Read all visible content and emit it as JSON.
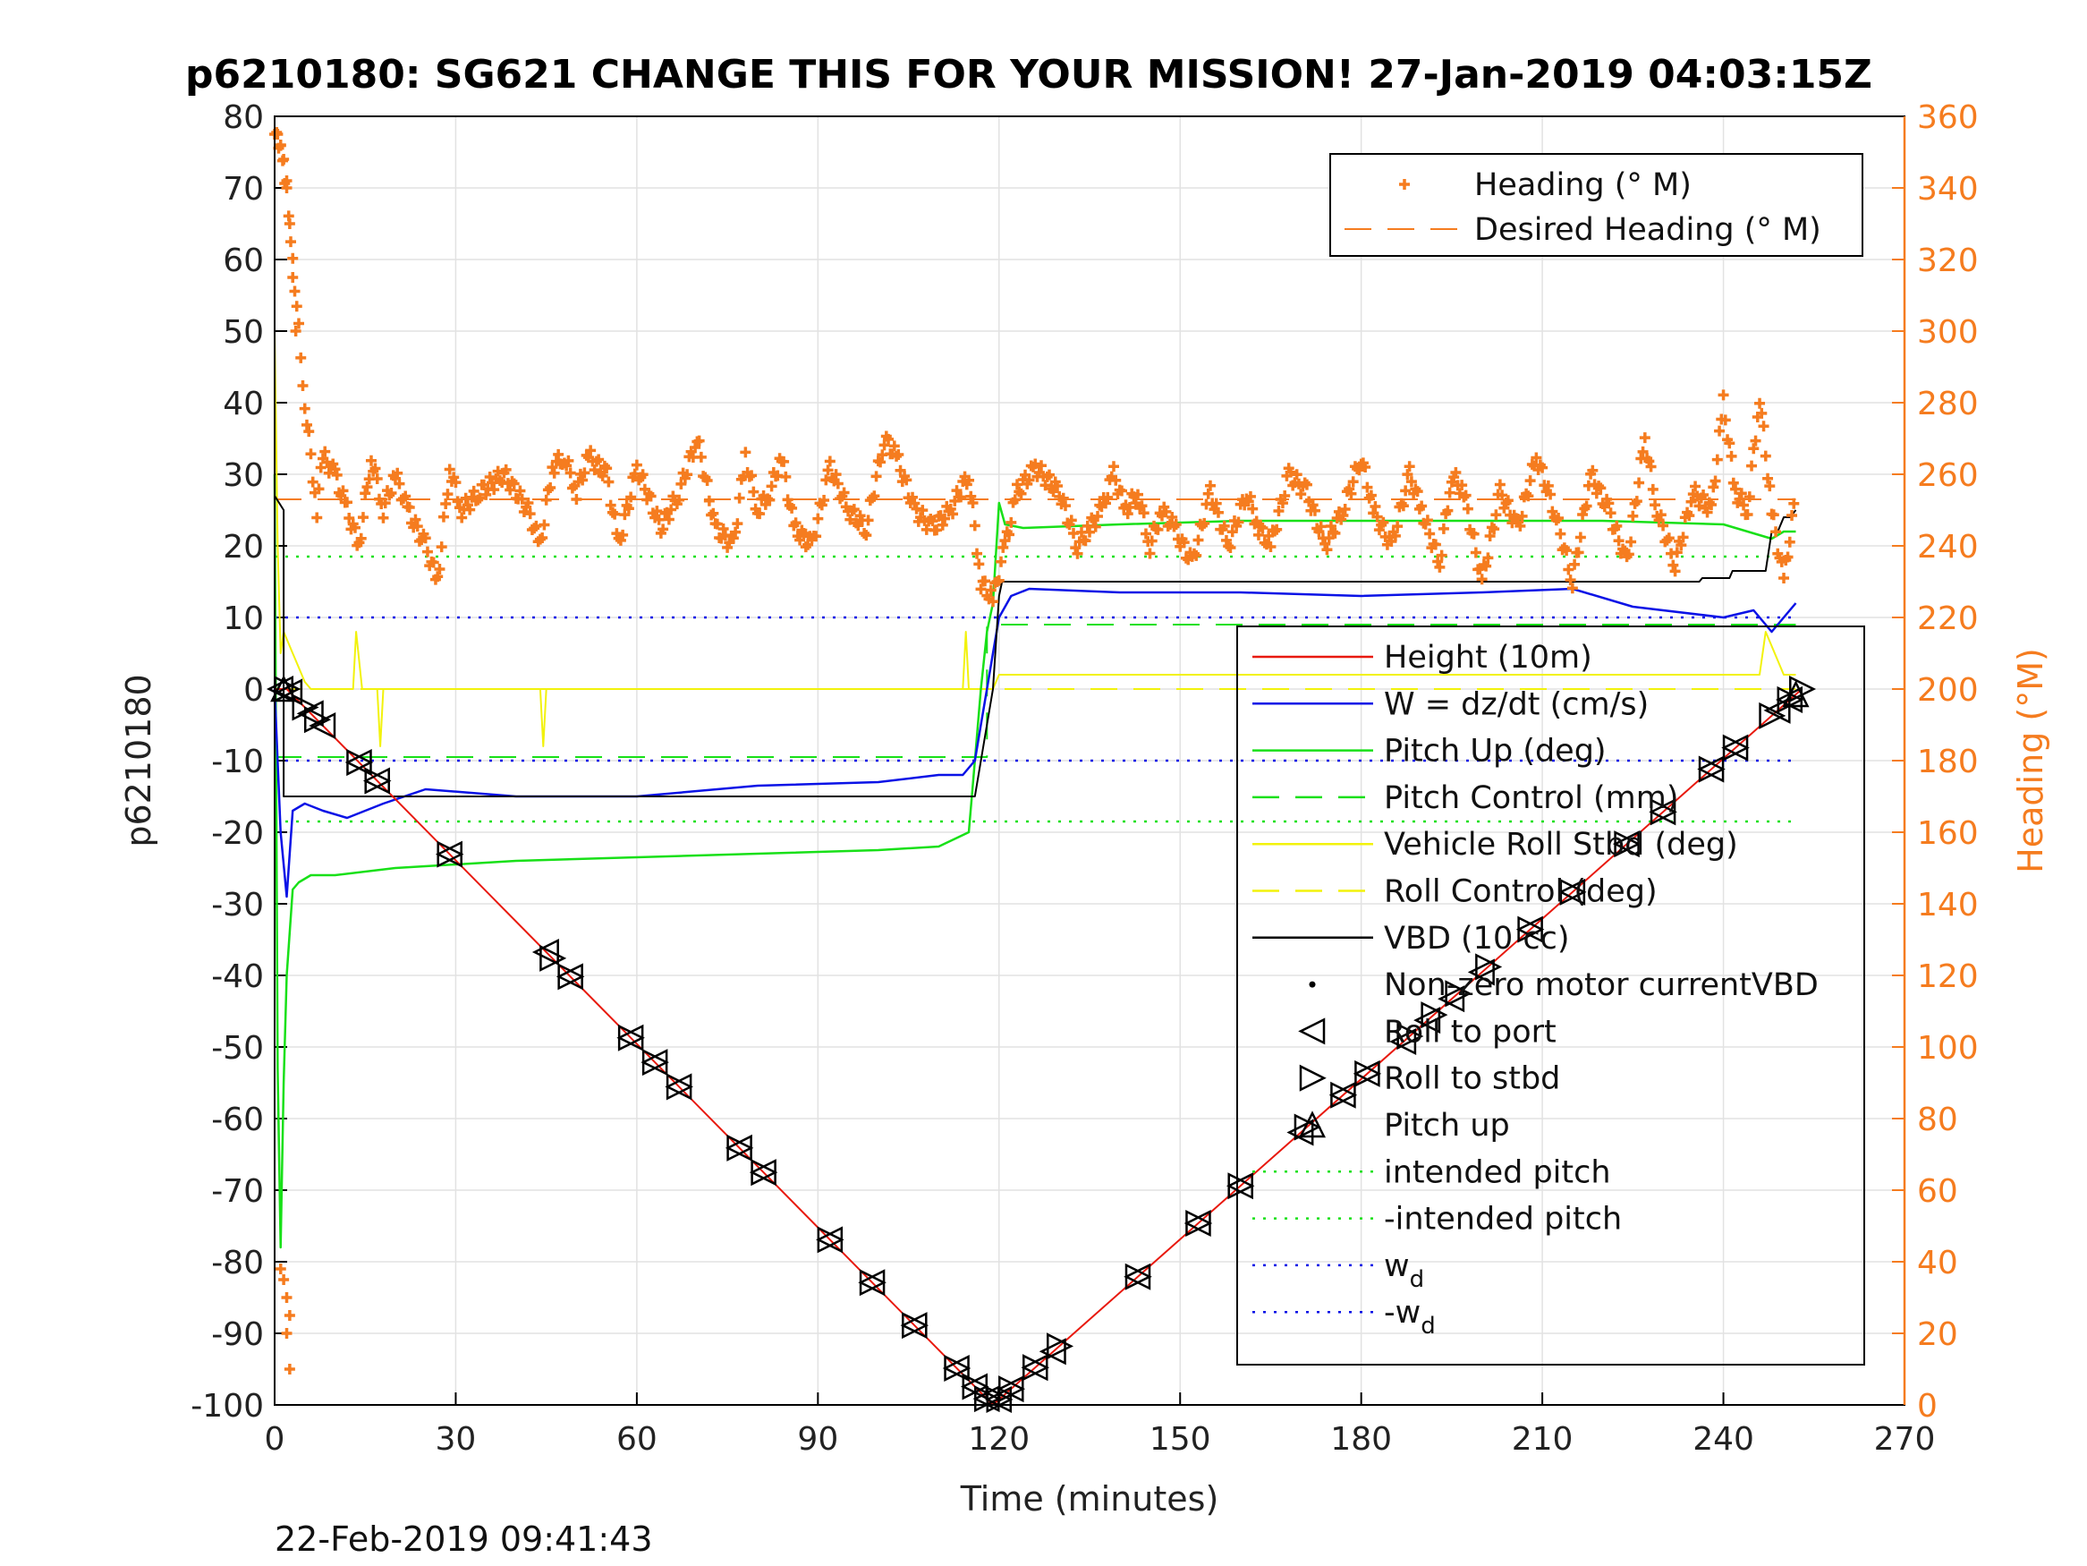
{
  "chart_data": {
    "type": "line",
    "title": "p6210180: SG621 CHANGE THIS FOR YOUR MISSION! 27-Jan-2019 04:03:15Z",
    "xlabel": "Time (minutes)",
    "ylabel": "p6210180",
    "ylabel_right": "Heading (°M)",
    "timestamp": "22-Feb-2019 09:41:43",
    "xlim": [
      0,
      270
    ],
    "ylim": [
      -100,
      80
    ],
    "ylim_right": [
      0,
      360
    ],
    "xticks": [
      "0",
      "30",
      "60",
      "90",
      "120",
      "150",
      "180",
      "210",
      "240",
      "270"
    ],
    "yticks": [
      "80",
      "70",
      "60",
      "50",
      "40",
      "30",
      "20",
      "10",
      "0",
      "-10",
      "-20",
      "-30",
      "-40",
      "-50",
      "-60",
      "-70",
      "-80",
      "-90",
      "-100"
    ],
    "yticks_right": [
      "360",
      "340",
      "320",
      "300",
      "280",
      "260",
      "240",
      "220",
      "200",
      "180",
      "160",
      "140",
      "120",
      "100",
      "80",
      "60",
      "40",
      "20",
      "0"
    ],
    "grid": true,
    "colors": {
      "height": "#e8190e",
      "w": "#0a12e6",
      "pitch": "#18e018",
      "roll": "#f2f20c",
      "vbd": "#000000",
      "heading": "#f57c1f",
      "right_axis": "#f57c1f"
    },
    "legend_heading": {
      "placement": "top-right",
      "entries": [
        "Heading (° M)",
        "Desired Heading (° M)"
      ]
    },
    "legend_main": {
      "placement": "right",
      "entries": [
        {
          "label": "Height (10m)",
          "sub": ""
        },
        {
          "label": "W = dz/dt (cm/s)",
          "sub": ""
        },
        {
          "label": "Pitch Up (deg)",
          "sub": ""
        },
        {
          "label": "Pitch Control (mm)",
          "sub": ""
        },
        {
          "label": "Vehicle Roll Stbd (deg)",
          "sub": ""
        },
        {
          "label": "Roll Control (deg)",
          "sub": ""
        },
        {
          "label": "VBD (10 cc)",
          "sub": ""
        },
        {
          "label": "Non-zero motor currentVBD",
          "sub": ""
        },
        {
          "label": "Roll to port",
          "sub": ""
        },
        {
          "label": "Roll to stbd",
          "sub": ""
        },
        {
          "label": "Pitch up",
          "sub": ""
        },
        {
          "label": "intended pitch",
          "sub": ""
        },
        {
          "label": "-intended pitch",
          "sub": ""
        },
        {
          "label": "w",
          "sub": "d"
        },
        {
          "label": "-w",
          "sub": "d"
        }
      ]
    },
    "series": [
      {
        "name": "Height (10m)",
        "x": [
          0,
          2,
          119,
          253
        ],
        "y": [
          0,
          0,
          -100,
          0
        ]
      },
      {
        "name": "W = dz/dt (cm/s)",
        "x": [
          0,
          1,
          2,
          3,
          5,
          8,
          12,
          18,
          25,
          40,
          60,
          80,
          100,
          110,
          114,
          116,
          117,
          118,
          119,
          120,
          122,
          125,
          140,
          160,
          180,
          200,
          215,
          225,
          240,
          245,
          248,
          250,
          252
        ],
        "y": [
          0,
          -20,
          -29,
          -17,
          -16,
          -17,
          -18,
          -16,
          -14,
          -15,
          -15,
          -13.5,
          -13,
          -12,
          -12,
          -10,
          -5,
          0,
          5,
          10,
          13,
          14,
          13.5,
          13.5,
          13,
          13.5,
          14,
          11.5,
          10,
          11,
          8,
          10,
          12
        ]
      },
      {
        "name": "Pitch Up (deg)",
        "x": [
          0,
          0.5,
          1,
          1.5,
          2,
          3,
          4,
          6,
          10,
          20,
          40,
          60,
          80,
          100,
          110,
          115,
          116,
          117,
          118,
          119,
          120,
          121,
          124,
          140,
          160,
          180,
          200,
          220,
          240,
          248,
          250,
          252
        ],
        "y": [
          30,
          -53,
          -78,
          -55,
          -40,
          -28,
          -27,
          -26,
          -26,
          -25,
          -24,
          -23.5,
          -23,
          -22.5,
          -22,
          -20,
          -10,
          0,
          8,
          12,
          26,
          23,
          22.5,
          23,
          23.5,
          23.5,
          23.5,
          23.5,
          23,
          21,
          22,
          22
        ]
      },
      {
        "name": "Pitch Control (mm)",
        "x": [
          0,
          118,
          118,
          252
        ],
        "y": [
          -9.5,
          -9.5,
          9,
          9
        ]
      },
      {
        "name": "Vehicle Roll Stbd (deg)",
        "x": [
          0,
          0.5,
          1,
          1.5,
          2,
          3,
          4,
          5,
          6,
          8,
          10,
          13,
          13.5,
          14.5,
          15,
          17,
          17.5,
          18,
          18.5,
          19,
          30,
          44,
          44.5,
          45,
          45.5,
          46,
          60,
          70,
          75,
          100,
          110,
          114,
          114.5,
          115,
          117,
          118,
          119,
          120,
          125,
          140,
          150,
          160,
          180,
          200,
          210,
          240,
          246,
          247,
          250,
          252
        ],
        "y": [
          50,
          20,
          5,
          8,
          7,
          5,
          3,
          1,
          0,
          0,
          0,
          0,
          8,
          0,
          0,
          0,
          -8,
          0,
          0,
          0,
          0,
          0,
          -8,
          0,
          0,
          0,
          0,
          0,
          0,
          0,
          0,
          0,
          8,
          0,
          0,
          0,
          0,
          2,
          2,
          2,
          2,
          2,
          2,
          2,
          2,
          2,
          2,
          8,
          2,
          2
        ]
      },
      {
        "name": "Roll Control (deg)",
        "x": [
          0,
          252
        ],
        "y": [
          0,
          0
        ]
      },
      {
        "name": "VBD (10 cc)",
        "x": [
          0,
          1.5,
          1.5,
          116,
          119,
          120,
          120.5,
          200,
          220,
          236,
          236.5,
          241,
          241.5,
          247,
          248,
          249,
          250,
          251,
          252
        ],
        "y": [
          27,
          25,
          -15,
          -15,
          0,
          13,
          15,
          15,
          15,
          15,
          15.5,
          15.5,
          16.5,
          16.5,
          22,
          22,
          24,
          24,
          25
        ]
      },
      {
        "name": "intended pitch",
        "x": [
          0,
          252
        ],
        "y": [
          18.5,
          18.5
        ]
      },
      {
        "name": "-intended pitch",
        "x": [
          0,
          252
        ],
        "y": [
          -18.5,
          -18.5
        ]
      },
      {
        "name": "w_d",
        "x": [
          0,
          252
        ],
        "y": [
          10,
          10
        ]
      },
      {
        "name": "-w_d",
        "x": [
          0,
          252
        ],
        "y": [
          -10,
          -10
        ]
      },
      {
        "name": "Desired Heading (° M)",
        "x": [
          0,
          252
        ],
        "y": [
          253,
          253
        ],
        "axis": "right"
      }
    ],
    "markers": {
      "roll_to_port": {
        "x": [
          1,
          2.5,
          6,
          8,
          14,
          17,
          29,
          45,
          49,
          59,
          63,
          67,
          77,
          81,
          92,
          99,
          106,
          113,
          116,
          118,
          120,
          122,
          126,
          129,
          143,
          153,
          160,
          170,
          177,
          181,
          187,
          191,
          195,
          200,
          208,
          215,
          224,
          230,
          238,
          242,
          249,
          251
        ]
      },
      "roll_to_stbd": {
        "x": [
          2,
          5,
          7,
          14,
          17,
          29,
          46,
          49,
          59,
          63,
          67,
          77,
          81,
          92,
          99,
          106,
          113,
          116,
          118,
          120,
          122,
          126,
          130,
          143,
          153,
          160,
          171,
          177,
          181,
          188,
          192,
          196,
          201,
          208,
          215,
          224,
          230,
          238,
          242,
          248,
          251,
          253
        ]
      },
      "pitch_up": {
        "x": [
          1.5,
          252
        ]
      }
    },
    "heading_path": {
      "x": [
        0,
        1,
        2,
        3,
        5,
        7,
        8,
        10,
        12,
        14,
        16,
        18,
        20,
        22,
        25,
        27,
        29,
        31,
        34,
        38,
        42,
        44,
        46,
        48,
        50,
        52,
        55,
        57,
        60,
        64,
        67,
        70,
        73,
        76,
        78,
        80,
        82,
        84,
        86,
        89,
        92,
        95,
        98,
        101,
        103,
        106,
        109,
        112,
        115,
        117,
        119,
        121,
        123,
        126,
        130,
        133,
        135,
        137,
        139,
        141,
        143,
        145,
        147,
        149,
        152,
        155,
        158,
        161,
        163,
        165,
        168,
        171,
        174,
        177,
        180,
        182,
        185,
        188,
        190,
        193,
        195,
        197,
        200,
        203,
        206,
        209,
        212,
        215,
        218,
        221,
        224,
        227,
        229,
        232,
        235,
        238,
        240,
        242,
        244,
        246,
        248,
        250,
        252
      ],
      "y": [
        355,
        350,
        340,
        320,
        280,
        250,
        265,
        260,
        250,
        240,
        265,
        250,
        260,
        250,
        240,
        230,
        262,
        250,
        255,
        260,
        250,
        240,
        262,
        265,
        255,
        265,
        260,
        240,
        262,
        245,
        255,
        270,
        245,
        240,
        265,
        250,
        255,
        265,
        245,
        240,
        262,
        250,
        245,
        270,
        265,
        250,
        245,
        250,
        260,
        230,
        225,
        240,
        255,
        262,
        255,
        240,
        245,
        250,
        260,
        250,
        255,
        240,
        250,
        245,
        235,
        255,
        240,
        255,
        245,
        240,
        260,
        255,
        240,
        250,
        265,
        250,
        240,
        260,
        250,
        235,
        260,
        255,
        230,
        255,
        245,
        265,
        250,
        230,
        260,
        250,
        235,
        270,
        250,
        235,
        255,
        250,
        280,
        255,
        250,
        282,
        250,
        230,
        255
      ]
    },
    "heading_outliers": {
      "x": [
        0.5,
        1,
        1.5,
        2,
        2.5,
        3,
        3.5,
        1,
        1.5,
        2,
        2.5,
        2,
        2.5
      ],
      "y": [
        355,
        352,
        348,
        340,
        330,
        315,
        300,
        38,
        35,
        30,
        25,
        20,
        10
      ]
    }
  }
}
